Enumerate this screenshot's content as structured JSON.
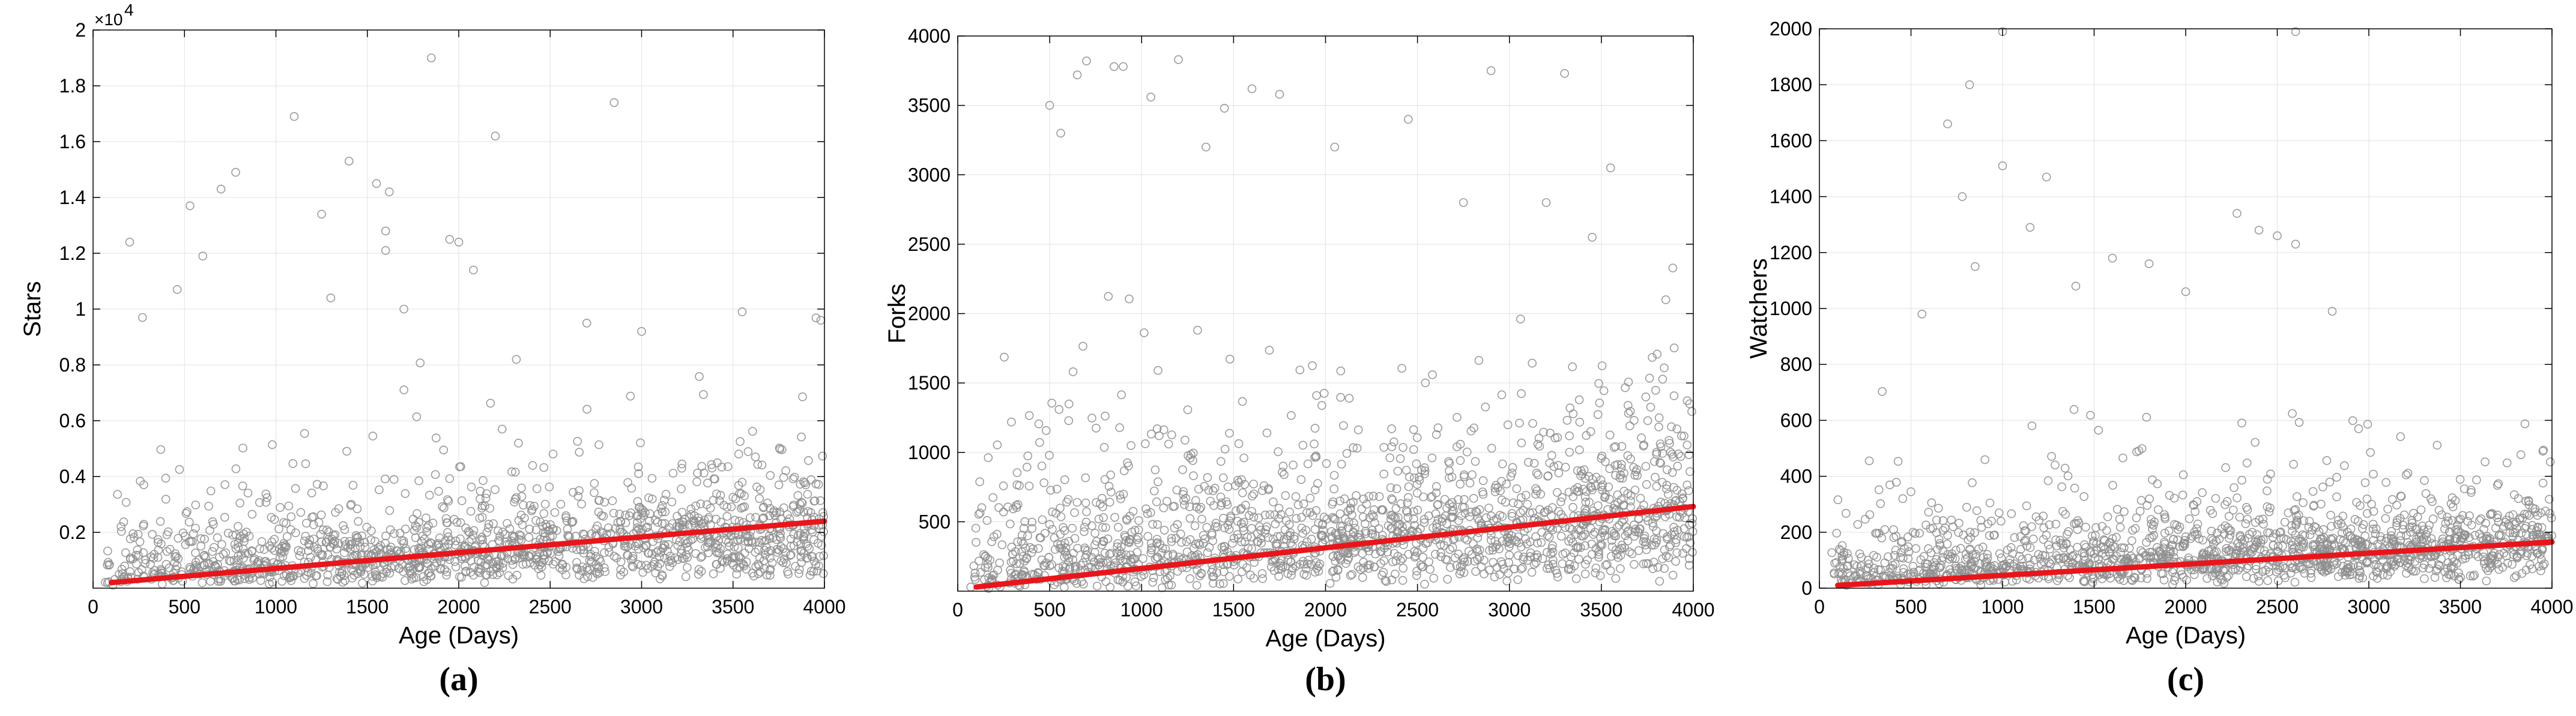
{
  "chart_data": [
    {
      "type": "scatter",
      "panel_label": "(a)",
      "xlabel": "Age (Days)",
      "ylabel": "Stars",
      "y_exponent_base": "×10",
      "y_exponent_power": "4",
      "xlim": [
        0,
        4000
      ],
      "ylim": [
        0,
        20000
      ],
      "x_ticks": [
        0,
        500,
        1000,
        1500,
        2000,
        2500,
        3000,
        3500,
        4000
      ],
      "x_tick_labels": [
        "0",
        "500",
        "1000",
        "1500",
        "2000",
        "2500",
        "3000",
        "3500",
        "4000"
      ],
      "y_ticks": [
        2000,
        4000,
        6000,
        8000,
        10000,
        12000,
        14000,
        16000,
        18000,
        20000
      ],
      "y_tick_labels": [
        "0.2",
        "0.4",
        "0.6",
        "0.8",
        "1",
        "1.2",
        "1.4",
        "1.6",
        "1.8",
        "2"
      ],
      "grid": true,
      "marker": "open-circle",
      "marker_color": "#8f8f8f",
      "trend_color": "#e8161b",
      "trend_line": {
        "x": [
          100,
          4000
        ],
        "y": [
          200,
          2400
        ]
      },
      "sample_points": [
        [
          1850,
          19000
        ],
        [
          1100,
          16900
        ],
        [
          2850,
          17400
        ],
        [
          2200,
          16200
        ],
        [
          1400,
          15300
        ],
        [
          780,
          14900
        ],
        [
          700,
          14300
        ],
        [
          1550,
          14500
        ],
        [
          1620,
          14200
        ],
        [
          1250,
          13400
        ],
        [
          530,
          13700
        ],
        [
          200,
          12400
        ],
        [
          1950,
          12500
        ],
        [
          2000,
          12400
        ],
        [
          1600,
          12800
        ],
        [
          1600,
          12100
        ],
        [
          2080,
          11400
        ],
        [
          600,
          11900
        ],
        [
          460,
          10700
        ],
        [
          270,
          9700
        ],
        [
          1300,
          10400
        ],
        [
          3550,
          9900
        ],
        [
          3980,
          9600
        ],
        [
          3000,
          9200
        ],
        [
          2700,
          9500
        ],
        [
          1700,
          10000
        ]
      ],
      "cloud": {
        "n": 1500,
        "seed": 11,
        "max": 10000,
        "base": 200,
        "slope": 0.55,
        "spread": 1350
      }
    },
    {
      "type": "scatter",
      "panel_label": "(b)",
      "xlabel": "Age (Days)",
      "ylabel": "Forks",
      "xlim": [
        0,
        4000
      ],
      "ylim": [
        0,
        4000
      ],
      "x_ticks": [
        0,
        500,
        1000,
        1500,
        2000,
        2500,
        3000,
        3500,
        4000
      ],
      "x_tick_labels": [
        "0",
        "500",
        "1000",
        "1500",
        "2000",
        "2500",
        "3000",
        "3500",
        "4000"
      ],
      "y_ticks": [
        500,
        1000,
        1500,
        2000,
        2500,
        3000,
        3500,
        4000
      ],
      "y_tick_labels": [
        "500",
        "1000",
        "1500",
        "2000",
        "2500",
        "3000",
        "3500",
        "4000"
      ],
      "grid": true,
      "marker": "open-circle",
      "marker_color": "#8f8f8f",
      "trend_color": "#e8161b",
      "trend_line": {
        "x": [
          100,
          4000
        ],
        "y": [
          30,
          610
        ]
      },
      "sample_points": [
        [
          700,
          3820
        ],
        [
          850,
          3780
        ],
        [
          1200,
          3830
        ],
        [
          650,
          3720
        ],
        [
          900,
          3780
        ],
        [
          1450,
          3480
        ],
        [
          1600,
          3620
        ],
        [
          1750,
          3580
        ],
        [
          2450,
          3400
        ],
        [
          3300,
          3730
        ],
        [
          2900,
          3750
        ],
        [
          3550,
          3050
        ],
        [
          500,
          3500
        ],
        [
          3200,
          2800
        ],
        [
          3450,
          2550
        ],
        [
          3850,
          2100
        ],
        [
          3980,
          1350
        ],
        [
          3950,
          450
        ],
        [
          560,
          3300
        ],
        [
          2750,
          2800
        ],
        [
          2050,
          3200
        ],
        [
          1050,
          3560
        ],
        [
          1350,
          3200
        ]
      ],
      "cloud": {
        "n": 1700,
        "seed": 23,
        "max": 2600,
        "base": 40,
        "slope": 0.15,
        "spread": 440
      }
    },
    {
      "type": "scatter",
      "panel_label": "(c)",
      "xlabel": "Age (Days)",
      "ylabel": "Watchers",
      "xlim": [
        0,
        4000
      ],
      "ylim": [
        0,
        2000
      ],
      "x_ticks": [
        0,
        500,
        1000,
        1500,
        2000,
        2500,
        3000,
        3500,
        4000
      ],
      "x_tick_labels": [
        "0",
        "500",
        "1000",
        "1500",
        "2000",
        "2500",
        "3000",
        "3500",
        "4000"
      ],
      "y_ticks": [
        0,
        200,
        400,
        600,
        800,
        1000,
        1200,
        1400,
        1600,
        1800,
        2000
      ],
      "y_tick_labels": [
        "0",
        "200",
        "400",
        "600",
        "800",
        "1000",
        "1200",
        "1400",
        "1600",
        "1800",
        "2000"
      ],
      "grid": true,
      "marker": "open-circle",
      "marker_color": "#8f8f8f",
      "trend_color": "#e8161b",
      "trend_line": {
        "x": [
          100,
          4000
        ],
        "y": [
          10,
          165
        ]
      },
      "sample_points": [
        [
          1000,
          1990
        ],
        [
          2600,
          1990
        ],
        [
          820,
          1800
        ],
        [
          700,
          1660
        ],
        [
          780,
          1400
        ],
        [
          1000,
          1510
        ],
        [
          1240,
          1470
        ],
        [
          1150,
          1290
        ],
        [
          2280,
          1340
        ],
        [
          2400,
          1280
        ],
        [
          2500,
          1260
        ],
        [
          2600,
          1230
        ],
        [
          850,
          1150
        ],
        [
          1600,
          1180
        ],
        [
          1800,
          1160
        ],
        [
          1400,
          1080
        ],
        [
          2000,
          1060
        ],
        [
          2800,
          990
        ],
        [
          560,
          980
        ],
        [
          3950,
          490
        ]
      ],
      "cloud": {
        "n": 1600,
        "seed": 37,
        "max": 760,
        "base": 15,
        "slope": 0.045,
        "spread": 125
      }
    }
  ]
}
